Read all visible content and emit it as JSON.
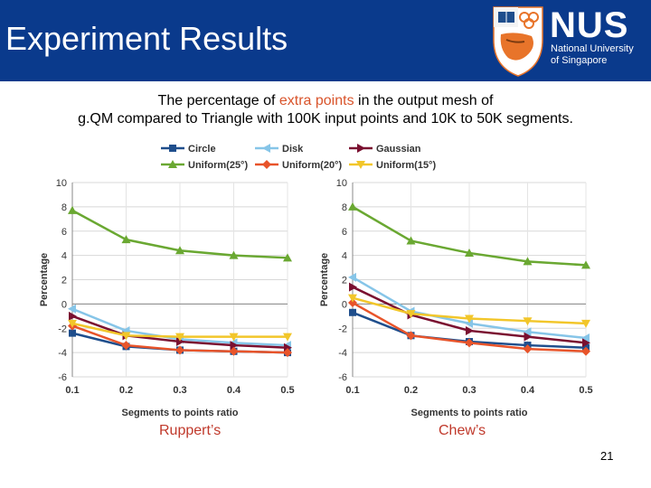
{
  "header": {
    "title": "Experiment Results",
    "logo_text": "NUS",
    "logo_sub_line1": "National University",
    "logo_sub_line2": "of Singapore"
  },
  "caption": {
    "part1": "The percentage of ",
    "highlight": "extra points",
    "part2": " in the output mesh of",
    "line2": "g.QM compared to Triangle with 100K input points and 10K to 50K segments."
  },
  "legend": [
    {
      "name": "Circle",
      "color": "#1f4e8c",
      "marker": "square"
    },
    {
      "name": "Disk",
      "color": "#86c5e8",
      "marker": "triangle-left"
    },
    {
      "name": "Gaussian",
      "color": "#7a1030",
      "marker": "triangle-right"
    },
    {
      "name": "Uniform(25°)",
      "color": "#6aa832",
      "marker": "triangle-up"
    },
    {
      "name": "Uniform(20°)",
      "color": "#e8542a",
      "marker": "diamond"
    },
    {
      "name": "Uniform(15°)",
      "color": "#f2c62a",
      "marker": "triangle-down"
    }
  ],
  "labels": {
    "left": "Ruppert’s",
    "right": "Chew’s",
    "page_number": "21"
  },
  "chart_data": [
    {
      "type": "line",
      "title": "Ruppert’s",
      "xlabel": "Segments to points ratio",
      "ylabel": "Percentage",
      "x": [
        0.1,
        0.2,
        0.3,
        0.4,
        0.5
      ],
      "ylim": [
        -6,
        10
      ],
      "yticks": [
        10,
        8,
        6,
        4,
        2,
        0,
        -2,
        -4,
        -6
      ],
      "xticks": [
        "0.1",
        "0.2",
        "0.3",
        "0.4",
        "0.5"
      ],
      "grid": true,
      "series": [
        {
          "name": "Circle",
          "values": [
            -2.4,
            -3.5,
            -3.8,
            -3.9,
            -4.0
          ]
        },
        {
          "name": "Disk",
          "values": [
            -0.4,
            -2.2,
            -2.9,
            -3.2,
            -3.4
          ]
        },
        {
          "name": "Gaussian",
          "values": [
            -1.0,
            -2.6,
            -3.1,
            -3.4,
            -3.6
          ]
        },
        {
          "name": "Uniform(25°)",
          "values": [
            7.7,
            5.3,
            4.4,
            4.0,
            3.8
          ]
        },
        {
          "name": "Uniform(20°)",
          "values": [
            -1.8,
            -3.4,
            -3.8,
            -3.9,
            -4.0
          ]
        },
        {
          "name": "Uniform(15°)",
          "values": [
            -1.6,
            -2.6,
            -2.7,
            -2.7,
            -2.7
          ]
        }
      ]
    },
    {
      "type": "line",
      "title": "Chew’s",
      "xlabel": "Segments to points ratio",
      "ylabel": "Percentage",
      "x": [
        0.1,
        0.2,
        0.3,
        0.4,
        0.5
      ],
      "ylim": [
        -6,
        10
      ],
      "yticks": [
        10,
        8,
        6,
        4,
        2,
        0,
        -2,
        -4,
        -6
      ],
      "xticks": [
        "0.1",
        "0.2",
        "0.3",
        "0.4",
        "0.5"
      ],
      "grid": true,
      "series": [
        {
          "name": "Circle",
          "values": [
            -0.7,
            -2.6,
            -3.1,
            -3.4,
            -3.6
          ]
        },
        {
          "name": "Disk",
          "values": [
            2.2,
            -0.6,
            -1.6,
            -2.3,
            -2.8
          ]
        },
        {
          "name": "Gaussian",
          "values": [
            1.4,
            -0.9,
            -2.2,
            -2.7,
            -3.2
          ]
        },
        {
          "name": "Uniform(25°)",
          "values": [
            8.0,
            5.2,
            4.2,
            3.5,
            3.2
          ]
        },
        {
          "name": "Uniform(20°)",
          "values": [
            0.1,
            -2.6,
            -3.2,
            -3.7,
            -3.9
          ]
        },
        {
          "name": "Uniform(15°)",
          "values": [
            0.5,
            -0.8,
            -1.2,
            -1.4,
            -1.6
          ]
        }
      ]
    }
  ]
}
